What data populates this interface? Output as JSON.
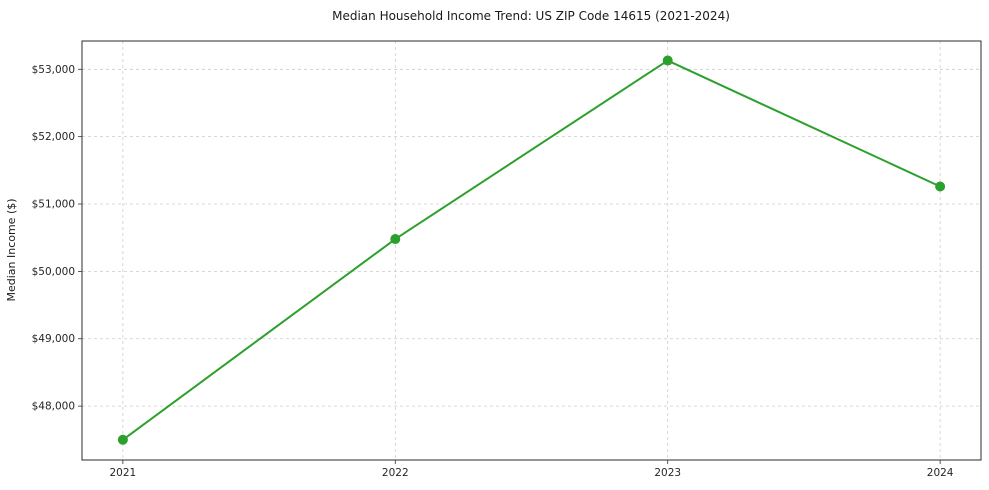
{
  "chart_data": {
    "type": "line",
    "title": "Median Household Income Trend: US ZIP Code 14615 (2021-2024)",
    "xlabel": "",
    "ylabel": "Median Income ($)",
    "x": [
      2021,
      2022,
      2023,
      2024
    ],
    "series": [
      {
        "name": "Median Household Income",
        "values": [
          47500,
          50480,
          53130,
          51260
        ],
        "color": "#2ca02c",
        "marker": "circle",
        "marker_radius": 5,
        "line_width": 2
      }
    ],
    "xlim": [
      2020.85,
      2024.15
    ],
    "ylim": [
      47200,
      53420
    ],
    "xtick_values": [
      2021,
      2022,
      2023,
      2024
    ],
    "xtick_labels": [
      "2021",
      "2022",
      "2023",
      "2024"
    ],
    "ytick_values": [
      48000,
      49000,
      50000,
      51000,
      52000,
      53000
    ],
    "ytick_labels": [
      "$48,000",
      "$49,000",
      "$50,000",
      "$51,000",
      "$52,000",
      "$53,000"
    ],
    "grid": true,
    "grid_style": "dashed",
    "grid_color": "#cccccc",
    "legend": "none",
    "background_color": "#ffffff"
  }
}
